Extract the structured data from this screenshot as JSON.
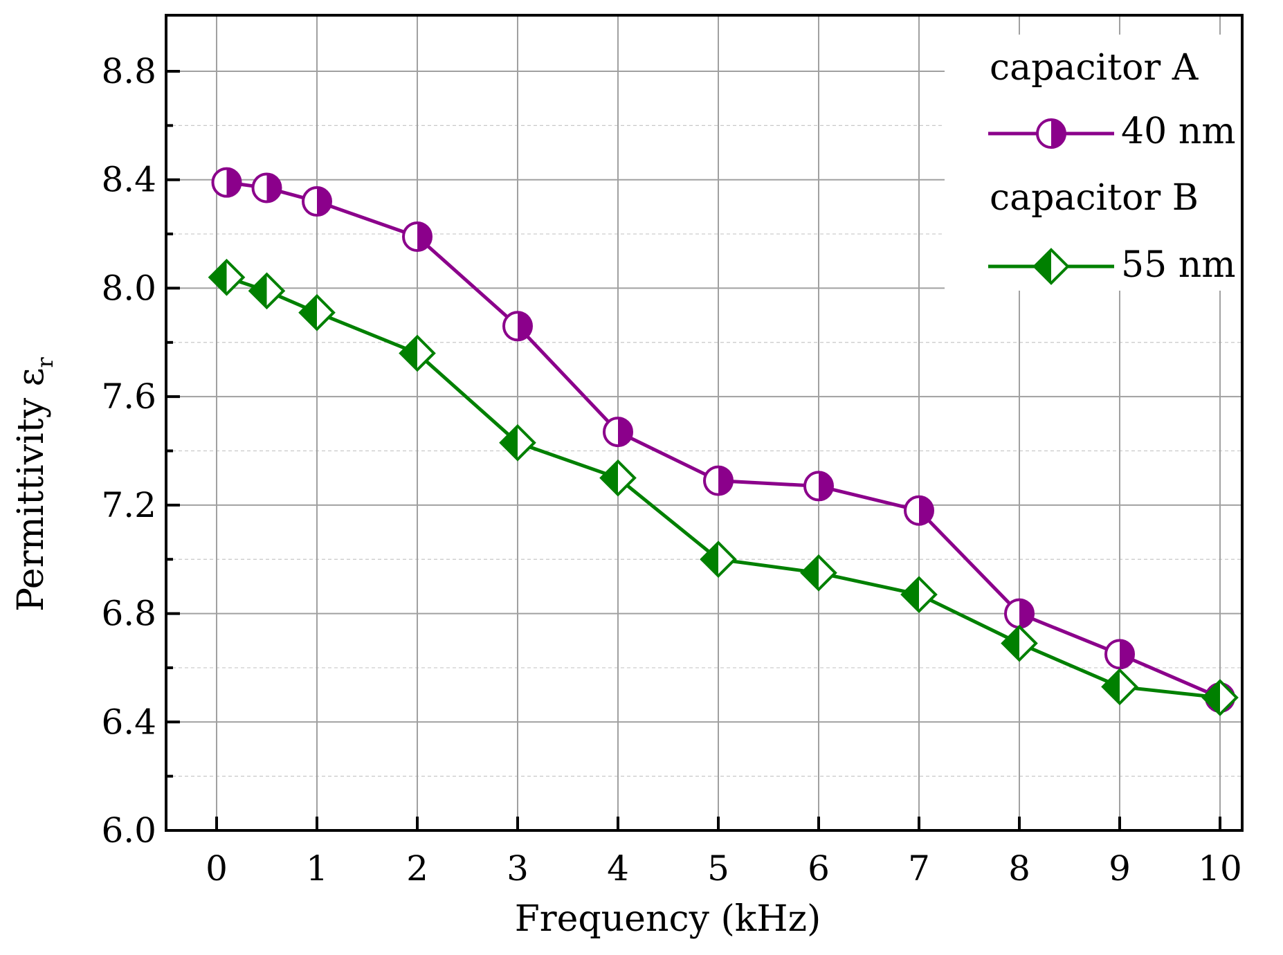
{
  "chart_data": {
    "type": "line",
    "title": "",
    "xlabel": "Frequency (kHz)",
    "ylabel": "Permittivity ε",
    "ylabel_subscript": "r",
    "xlim": [
      -0.5,
      10.5
    ],
    "ylim": [
      6.0,
      9.0
    ],
    "x_ticks": [
      0,
      1,
      2,
      3,
      4,
      5,
      6,
      7,
      8,
      9,
      10
    ],
    "x_tick_labels": [
      "0",
      "1",
      "2",
      "3",
      "4",
      "5",
      "6",
      "7",
      "8",
      "9",
      "10"
    ],
    "y_ticks": [
      6.0,
      6.4,
      6.8,
      7.2,
      7.6,
      8.0,
      8.4,
      8.8
    ],
    "y_tick_labels": [
      "6.0",
      "6.4",
      "6.8",
      "7.2",
      "7.6",
      "8.0",
      "8.4",
      "8.8"
    ],
    "y_minor_ticks": [
      6.2,
      6.6,
      7.0,
      7.4,
      7.8,
      8.2,
      8.6
    ],
    "grid": true,
    "legend_position": "top-right",
    "series": [
      {
        "group_label": "capacitor A",
        "name": "40 nm",
        "color": "#8b008b",
        "marker": "half-filled-circle",
        "x": [
          0.1,
          0.5,
          1,
          2,
          3,
          4,
          5,
          6,
          7,
          8,
          9,
          10
        ],
        "y": [
          8.39,
          8.37,
          8.32,
          8.19,
          7.86,
          7.47,
          7.29,
          7.27,
          7.18,
          6.8,
          6.65,
          6.49
        ]
      },
      {
        "group_label": "capacitor B",
        "name": "55 nm",
        "color": "#008000",
        "marker": "half-filled-diamond",
        "x": [
          0.1,
          0.5,
          1,
          2,
          3,
          4,
          5,
          6,
          7,
          8,
          9,
          10
        ],
        "y": [
          8.04,
          7.99,
          7.91,
          7.76,
          7.43,
          7.3,
          7.0,
          6.95,
          6.87,
          6.69,
          6.53,
          6.49
        ]
      }
    ]
  }
}
